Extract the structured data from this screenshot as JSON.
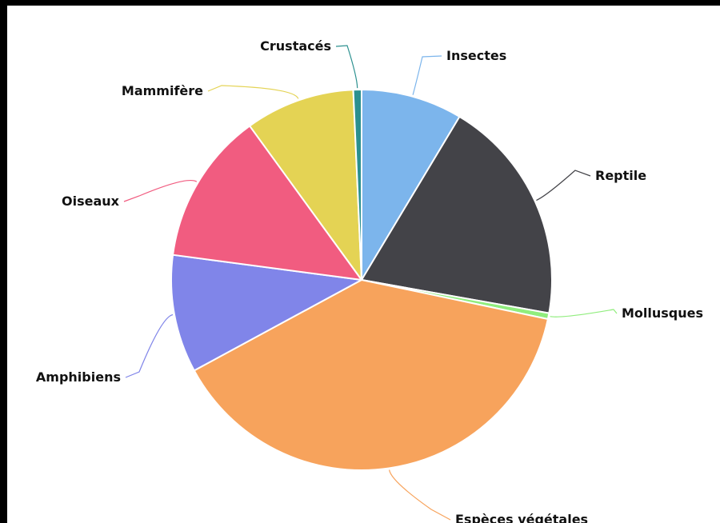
{
  "chart_data": {
    "type": "pie",
    "start_angle_deg": 0,
    "slices": [
      {
        "name": "Insectes",
        "value": 8.6,
        "color": "#7cb5ec"
      },
      {
        "name": "Reptile",
        "value": 19.2,
        "color": "#434348"
      },
      {
        "name": "Mollusques",
        "value": 0.5,
        "color": "#90ed7d"
      },
      {
        "name": "Espèces végétales",
        "value": 38.8,
        "color": "#f7a35c"
      },
      {
        "name": "Amphibiens",
        "value": 10.0,
        "color": "#8085e9"
      },
      {
        "name": "Oiseaux",
        "value": 12.9,
        "color": "#f15c80"
      },
      {
        "name": "Mammifère",
        "value": 9.3,
        "color": "#e4d354"
      },
      {
        "name": "Crustacés",
        "value": 0.7,
        "color": "#2b908f"
      }
    ]
  }
}
